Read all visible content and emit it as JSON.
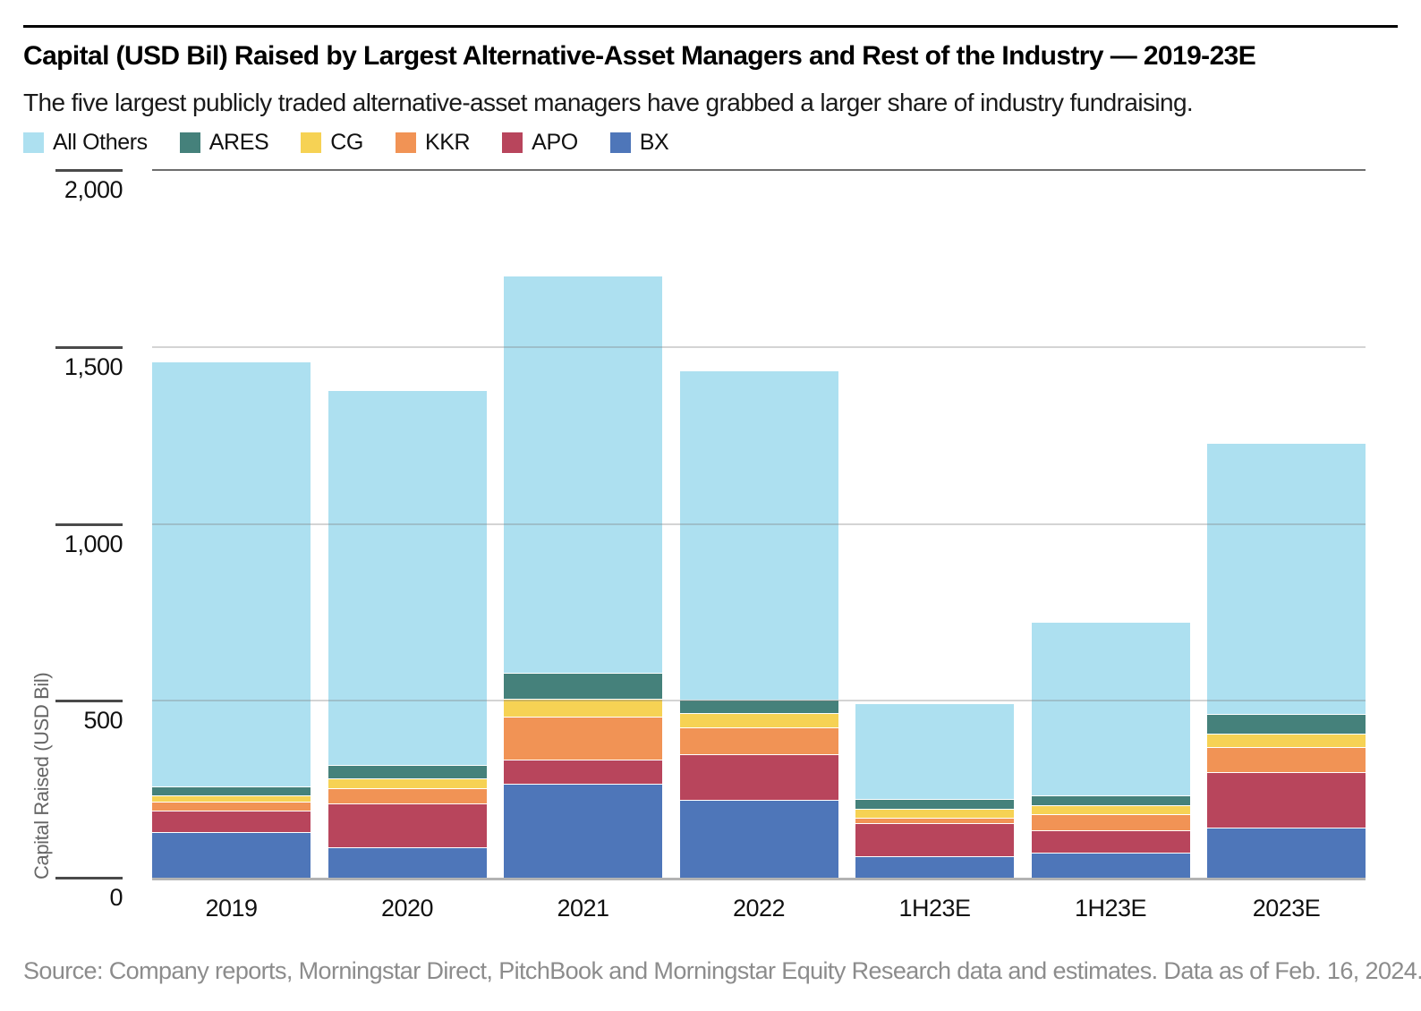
{
  "page": {
    "title": "Capital (USD Bil) Raised by Largest Alternative-Asset Managers and Rest of the Industry — 2019-23E",
    "subtitle": "The five largest publicly traded alternative-asset managers have grabbed a larger share of industry fundraising.",
    "source": "Source: Company reports, Morningstar Direct, PitchBook and Morningstar Equity Research data and estimates. Data as of Feb. 16, 2024."
  },
  "legend": {
    "items": [
      {
        "label": "All Others",
        "color": "#ADE0F0"
      },
      {
        "label": "ARES",
        "color": "#45817B"
      },
      {
        "label": "CG",
        "color": "#F6D254"
      },
      {
        "label": "KKR",
        "color": "#F19355"
      },
      {
        "label": "APO",
        "color": "#B8455C"
      },
      {
        "label": "BX",
        "color": "#4E76B9"
      }
    ]
  },
  "chart_data": {
    "type": "bar",
    "stacked": true,
    "stack_order": "bottom_to_top",
    "title": "Capital (USD Bil) Raised by Largest Alternative-Asset Managers and Rest of the Industry — 2019-23E",
    "ylabel": "Capital Raised (USD Bil)",
    "ylim": [
      0,
      2000
    ],
    "grid": "horizontal",
    "legend_position": "top",
    "categories": [
      "2019",
      "2020",
      "2021",
      "2022",
      "1H23E",
      "1H23E",
      "2023E"
    ],
    "series": [
      {
        "name": "BX",
        "color": "#4E76B9",
        "values": [
          128,
          87,
          265,
          220,
          62,
          70,
          141
        ]
      },
      {
        "name": "APO",
        "color": "#B8455C",
        "values": [
          61,
          123,
          69,
          129,
          92,
          63,
          157
        ]
      },
      {
        "name": "KKR",
        "color": "#F19355",
        "values": [
          25,
          44,
          122,
          76,
          16,
          47,
          71
        ]
      },
      {
        "name": "CG",
        "color": "#F6D254",
        "values": [
          20,
          26,
          49,
          40,
          24,
          24,
          37
        ]
      },
      {
        "name": "ARES",
        "color": "#45817B",
        "values": [
          23,
          38,
          74,
          38,
          29,
          28,
          58
        ]
      },
      {
        "name": "All Others",
        "color": "#ADE0F0",
        "values": [
          1201,
          1061,
          1123,
          931,
          269,
          492,
          765
        ]
      }
    ],
    "totals": [
      1458,
      1379,
      1702,
      1434,
      492,
      724,
      1229
    ],
    "yticks": [
      {
        "value": 2000,
        "label": "2,000"
      },
      {
        "value": 1500,
        "label": "1,500"
      },
      {
        "value": 1000,
        "label": "1,000"
      },
      {
        "value": 500,
        "label": "500"
      },
      {
        "value": 0,
        "label": "0"
      }
    ]
  }
}
